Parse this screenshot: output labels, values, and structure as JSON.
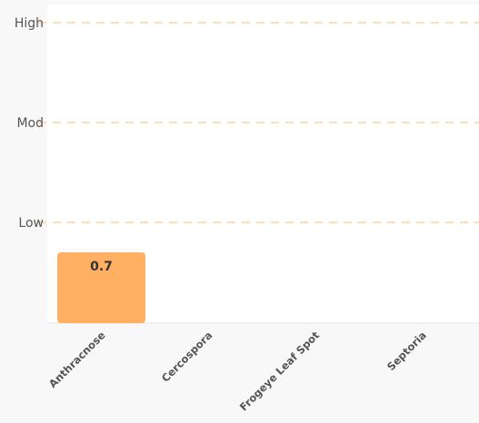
{
  "chart_data": {
    "type": "bar",
    "title": "",
    "xlabel": "",
    "ylabel": "",
    "categories": [
      "Anthracnose",
      "Cercospora",
      "Frogeye Leaf Spot",
      "Septoria"
    ],
    "values": [
      0.7,
      0,
      0,
      0
    ],
    "data_labels": [
      "0.7",
      "",
      "",
      ""
    ],
    "ylim": [
      0,
      3
    ],
    "y_ticks": [
      {
        "value": 1,
        "label": "Low"
      },
      {
        "value": 2,
        "label": "Mod"
      },
      {
        "value": 3,
        "label": "High"
      }
    ],
    "grid": true,
    "colors": {
      "bar": "#ffb062",
      "gridline": "#ffc890",
      "plot_background": "#ffffff",
      "page_background": "#f8f8f8",
      "text": "#555555",
      "label": "#333333"
    }
  }
}
